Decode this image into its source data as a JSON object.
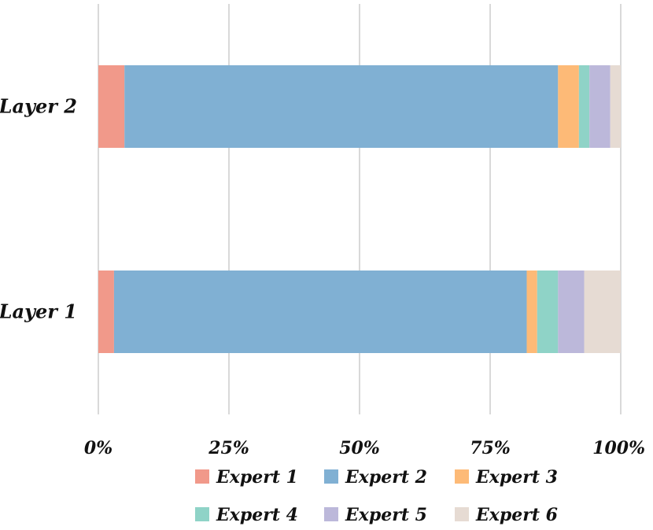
{
  "chart_data": {
    "type": "bar",
    "orientation": "horizontal",
    "stacked": "percent",
    "categories": [
      "Layer 2",
      "Layer 1"
    ],
    "series": [
      {
        "name": "Expert 1",
        "color": "#f1998a",
        "values": [
          5,
          3
        ]
      },
      {
        "name": "Expert 2",
        "color": "#80b0d3",
        "values": [
          83,
          79
        ]
      },
      {
        "name": "Expert 3",
        "color": "#fdba77",
        "values": [
          4,
          2
        ]
      },
      {
        "name": "Expert 4",
        "color": "#8fd3c7",
        "values": [
          2,
          4
        ]
      },
      {
        "name": "Expert 5",
        "color": "#bcb8da",
        "values": [
          4,
          5
        ]
      },
      {
        "name": "Expert 6",
        "color": "#e6dbd3",
        "values": [
          2,
          7
        ]
      }
    ],
    "xlim": [
      0,
      100
    ],
    "xticks": [
      "0%",
      "25%",
      "50%",
      "75%",
      "100%"
    ],
    "grid": true,
    "legend": "bottom",
    "title": "",
    "xlabel": "",
    "ylabel": ""
  }
}
